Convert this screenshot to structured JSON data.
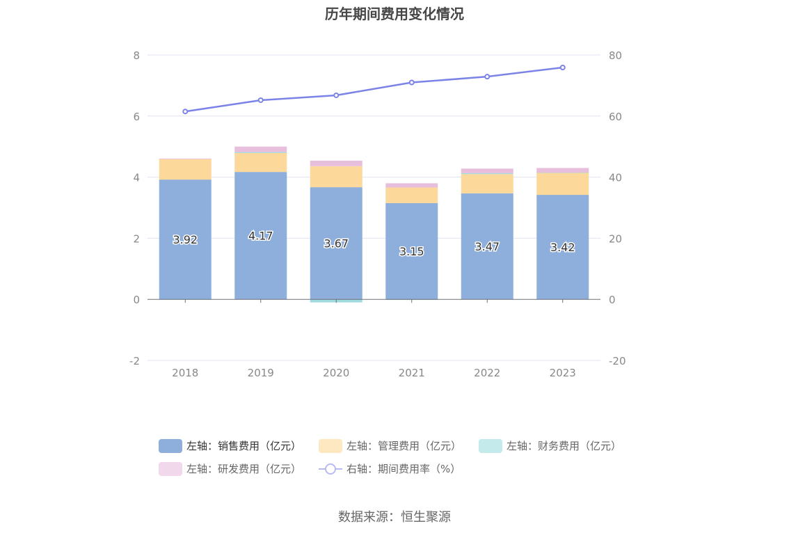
{
  "chart_data": {
    "type": "bar",
    "title": "历年期间费用变化情况",
    "categories": [
      "2018",
      "2019",
      "2020",
      "2021",
      "2022",
      "2023"
    ],
    "left_axis": {
      "ylim": [
        -2,
        8
      ],
      "ticks": [
        "-2",
        "0",
        "2",
        "4",
        "6",
        "8"
      ]
    },
    "right_axis": {
      "ylim": [
        -20,
        80
      ],
      "ticks": [
        "-20",
        "0",
        "20",
        "40",
        "60",
        "80"
      ]
    },
    "grid": true,
    "legend_position": "bottom",
    "series": [
      {
        "name": "左轴：销售费用（亿元）",
        "axis": "left",
        "kind": "stacked-bar",
        "color": "#8eaedb",
        "values": [
          3.92,
          4.17,
          3.67,
          3.15,
          3.47,
          3.42
        ],
        "labels": [
          "3.92",
          "4.17",
          "3.67",
          "3.15",
          "3.47",
          "3.42"
        ]
      },
      {
        "name": "左轴：管理费用（亿元）",
        "axis": "left",
        "kind": "stacked-bar",
        "color": "#fcd99a",
        "values": [
          0.67,
          0.62,
          0.69,
          0.51,
          0.63,
          0.72
        ]
      },
      {
        "name": "左轴：财务费用（亿元）",
        "axis": "left",
        "kind": "stacked-bar",
        "color": "#9fdcdf",
        "values": [
          -0.01,
          0.03,
          -0.1,
          -0.02,
          0.03,
          0.01
        ]
      },
      {
        "name": "左轴：研发费用（亿元）",
        "axis": "left",
        "kind": "stacked-bar",
        "color": "#e8bedd",
        "values": [
          0.02,
          0.18,
          0.18,
          0.14,
          0.15,
          0.15
        ]
      },
      {
        "name": "右轴：期间费用率（%）",
        "axis": "right",
        "kind": "line",
        "color": "#7b83e9",
        "values": [
          61.5,
          65.2,
          66.8,
          71.0,
          72.9,
          75.9
        ]
      }
    ]
  },
  "source": "数据来源：恒生聚源"
}
